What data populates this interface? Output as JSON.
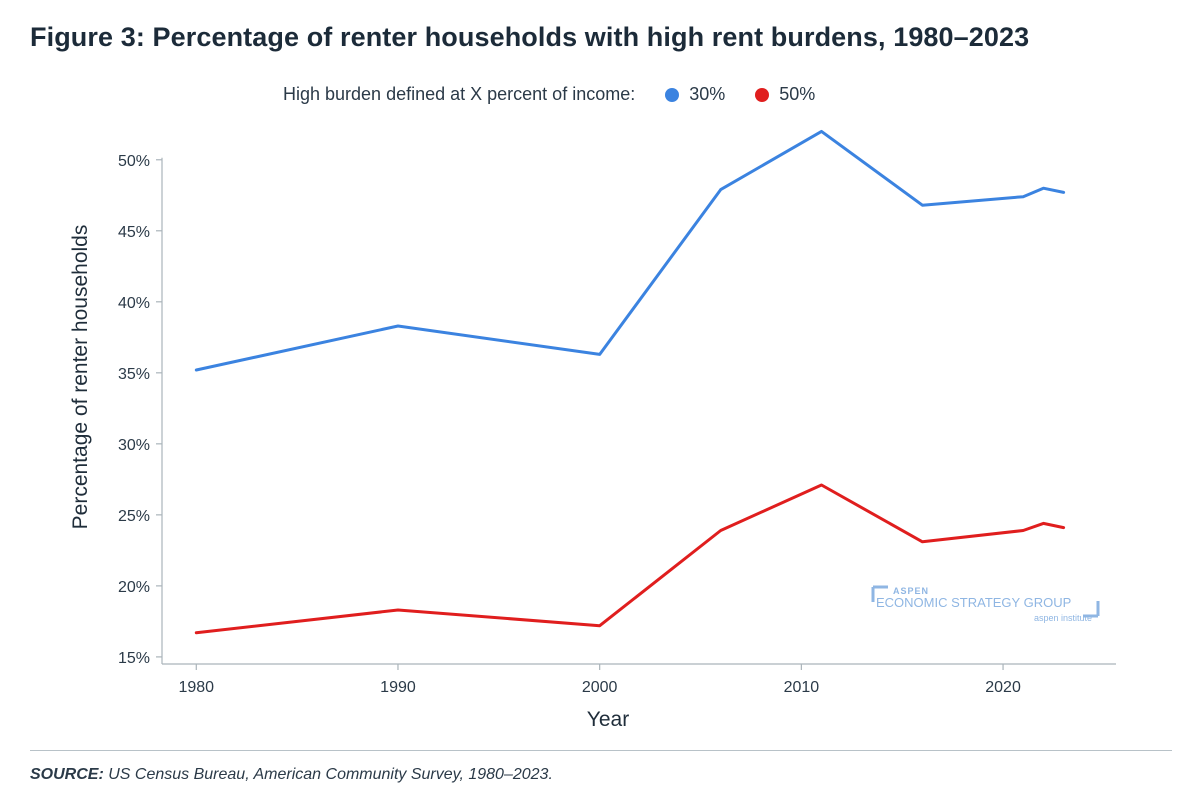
{
  "chart_data": {
    "type": "line",
    "title": "Figure 3: Percentage of renter households with high rent burdens, 1980–2023",
    "xlabel": "Year",
    "ylabel": "Percentage of renter households",
    "legend_title": "High burden defined at X percent of income:",
    "legend_position": "top",
    "xlim": [
      1978.3,
      1025.6
    ],
    "ylim": [
      14.5,
      52.8
    ],
    "x_ticks": [
      1980,
      1990,
      2000,
      2010,
      2020
    ],
    "y_ticks": [
      15,
      20,
      25,
      30,
      35,
      40,
      45,
      50
    ],
    "y_tick_labels": [
      "15%",
      "20%",
      "25%",
      "30%",
      "35%",
      "40%",
      "45%",
      "50%"
    ],
    "grid": false,
    "series": [
      {
        "name": "30%",
        "color": "#3b83e0",
        "x": [
          1980,
          1990,
          2000,
          2006,
          2011,
          2016,
          2021,
          2022,
          2023
        ],
        "y": [
          35.2,
          38.3,
          36.3,
          47.9,
          52.0,
          46.8,
          47.4,
          48.0,
          47.7
        ]
      },
      {
        "name": "50%",
        "color": "#e01e1e",
        "x": [
          1980,
          1990,
          2000,
          2006,
          2011,
          2016,
          2021,
          2022,
          2023
        ],
        "y": [
          16.7,
          18.3,
          17.2,
          23.9,
          27.1,
          23.1,
          23.9,
          24.4,
          24.1
        ]
      }
    ]
  },
  "logo": {
    "line1": "ASPEN",
    "line2": "ECONOMIC STRATEGY GROUP",
    "line3": "aspen institute",
    "color": "#8fb6e3"
  },
  "source": {
    "label": "SOURCE:",
    "text": " US Census Bureau, American Community Survey, 1980–2023."
  }
}
